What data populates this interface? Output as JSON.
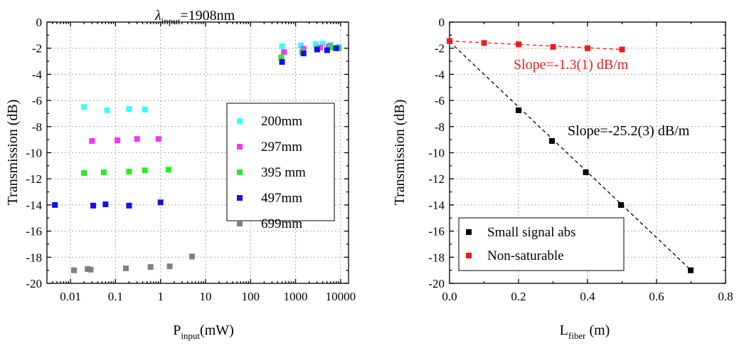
{
  "chart_data": [
    {
      "type": "scatter",
      "title": "λinput=1908nm",
      "title_main": "λ",
      "title_sub": "input",
      "title_tail": "=1908nm",
      "xscale": "log",
      "xlim": [
        0.003,
        15000
      ],
      "ylim": [
        -20,
        0
      ],
      "ylabel": "Transmission (dB)",
      "xlabel_main": "P",
      "xlabel_sub": "input",
      "xlabel_tail": "(mW)",
      "xticks": [
        0.01,
        0.1,
        1,
        10,
        100,
        1000,
        10000
      ],
      "xtick_labels": [
        "0.01",
        "0.1",
        "1",
        "10",
        "100",
        "1000",
        "10000"
      ],
      "yticks": [
        0,
        -2,
        -4,
        -6,
        -8,
        -10,
        -12,
        -14,
        -16,
        -18,
        -20
      ],
      "ytick_labels": [
        "0",
        "-2",
        "-4",
        "-6",
        "-8",
        "-10",
        "-12",
        "-14",
        "-16",
        "-18",
        "-20"
      ],
      "legend_position": "center-right",
      "series": [
        {
          "name": "200mm",
          "color": "#33ffff",
          "points": [
            [
              0.02,
              -6.5
            ],
            [
              0.065,
              -6.75
            ],
            [
              0.2,
              -6.65
            ],
            [
              0.45,
              -6.7
            ],
            [
              500,
              -1.85
            ],
            [
              1300,
              -1.8
            ],
            [
              2800,
              -1.7
            ],
            [
              4000,
              -1.65
            ],
            [
              6000,
              -1.75
            ],
            [
              9000,
              -1.9
            ]
          ]
        },
        {
          "name": "297mm",
          "color": "#ff33ff",
          "points": [
            [
              0.03,
              -9.1
            ],
            [
              0.11,
              -9.05
            ],
            [
              0.3,
              -8.95
            ],
            [
              0.9,
              -8.95
            ],
            [
              550,
              -2.3
            ],
            [
              1500,
              -2.05
            ],
            [
              3500,
              -1.95
            ],
            [
              5500,
              -1.85
            ],
            [
              8000,
              -2.0
            ]
          ]
        },
        {
          "name": "395 mm",
          "color": "#22ee22",
          "points": [
            [
              0.02,
              -11.55
            ],
            [
              0.055,
              -11.5
            ],
            [
              0.2,
              -11.45
            ],
            [
              0.45,
              -11.35
            ],
            [
              1.5,
              -11.3
            ],
            [
              480,
              -2.7
            ],
            [
              1400,
              -2.3
            ],
            [
              3000,
              -2.05
            ],
            [
              6000,
              -1.95
            ],
            [
              9000,
              -2.0
            ]
          ]
        },
        {
          "name": "497mm",
          "color": "#1111ee",
          "points": [
            [
              0.0045,
              -14.0
            ],
            [
              0.032,
              -14.05
            ],
            [
              0.06,
              -13.95
            ],
            [
              0.2,
              -14.05
            ],
            [
              1.0,
              -13.8
            ],
            [
              500,
              -3.05
            ],
            [
              1500,
              -2.4
            ],
            [
              3000,
              -2.1
            ],
            [
              5000,
              -2.15
            ],
            [
              8000,
              -2.0
            ]
          ]
        },
        {
          "name": "699mm",
          "color": "#808080",
          "points": [
            [
              0.012,
              -19.0
            ],
            [
              0.024,
              -18.9
            ],
            [
              0.028,
              -18.95
            ],
            [
              0.17,
              -18.85
            ],
            [
              0.6,
              -18.75
            ],
            [
              1.6,
              -18.7
            ],
            [
              5.0,
              -17.95
            ]
          ]
        }
      ]
    },
    {
      "type": "scatter",
      "title": "",
      "xscale": "linear",
      "xlim": [
        0.0,
        0.8
      ],
      "ylim": [
        -20,
        0
      ],
      "ylabel": "Transmission (dB)",
      "xlabel_main": "L",
      "xlabel_sub": "fiber",
      "xlabel_tail": " (m)",
      "xticks": [
        0.0,
        0.2,
        0.4,
        0.6,
        0.8
      ],
      "xtick_labels": [
        "0.0",
        "0.2",
        "0.4",
        "0.6",
        "0.8"
      ],
      "yticks": [
        0,
        -2,
        -4,
        -6,
        -8,
        -10,
        -12,
        -14,
        -16,
        -18,
        -20
      ],
      "ytick_labels": [
        "0",
        "-2",
        "-4",
        "-6",
        "-8",
        "-10",
        "-12",
        "-14",
        "-16",
        "-18",
        "-20"
      ],
      "legend_position": "bottom-left",
      "series": [
        {
          "name": "Small signal abs",
          "color": "#000000",
          "points": [
            [
              0.2,
              -6.75
            ],
            [
              0.297,
              -9.1
            ],
            [
              0.395,
              -11.5
            ],
            [
              0.497,
              -14.0
            ],
            [
              0.699,
              -19.0
            ]
          ],
          "fit": [
            [
              0.0,
              -1.5
            ],
            [
              0.7,
              -19.0
            ]
          ],
          "annotation": "Slope=-25.2(3) dB/m",
          "annotation_color": "#000000"
        },
        {
          "name": "Non-saturable",
          "color": "#ee1c1c",
          "points": [
            [
              0.0,
              -1.45
            ],
            [
              0.1,
              -1.6
            ],
            [
              0.2,
              -1.7
            ],
            [
              0.3,
              -1.9
            ],
            [
              0.4,
              -2.0
            ],
            [
              0.5,
              -2.1
            ]
          ],
          "fit": [
            [
              0.0,
              -1.45
            ],
            [
              0.5,
              -2.1
            ]
          ],
          "annotation": "Slope=-1.3(1) dB/m",
          "annotation_color": "#ee1c1c"
        }
      ]
    }
  ]
}
